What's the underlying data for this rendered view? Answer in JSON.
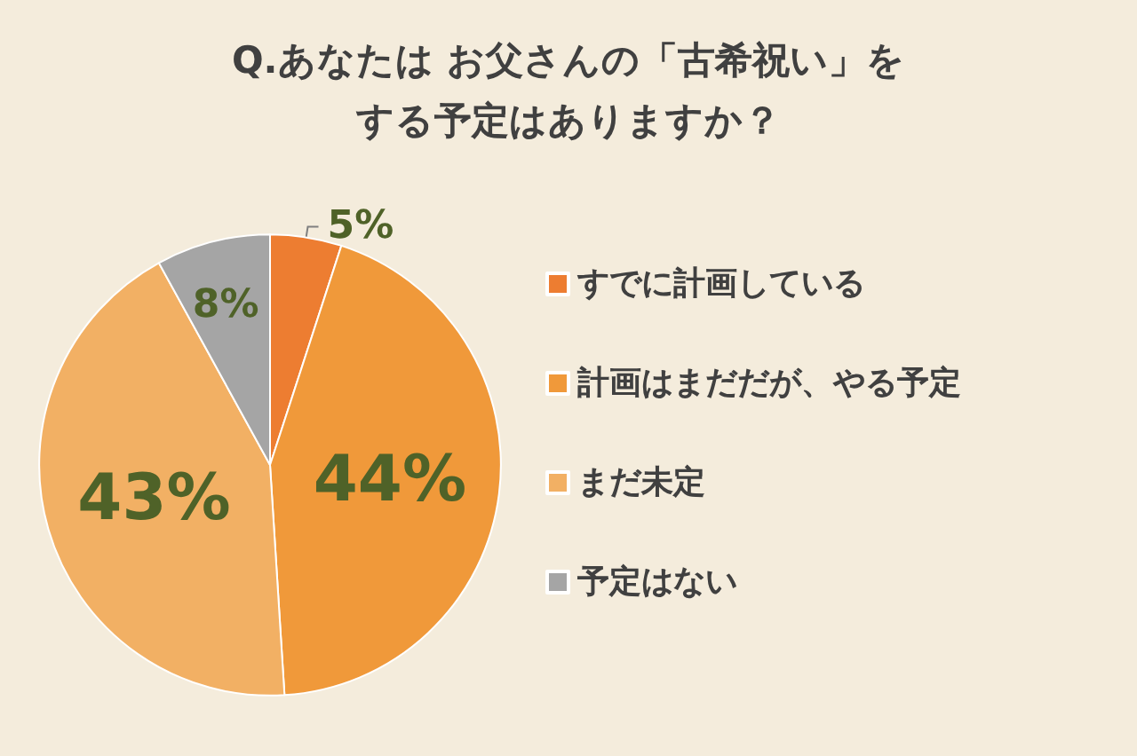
{
  "chart_data": {
    "type": "pie",
    "title": "Q.あなたは お父さんの「古希祝い」をする予定はありますか？",
    "categories": [
      "すでに計画している",
      "計画はまだだが、やる予定",
      "まだ未定",
      "予定はない"
    ],
    "values": [
      5,
      44,
      43,
      8
    ],
    "value_labels": [
      "5%",
      "44%",
      "43%",
      "8%"
    ],
    "colors": [
      "#ed7d31",
      "#f0993a",
      "#f2b064",
      "#a5a5a5"
    ],
    "legend": "right"
  }
}
